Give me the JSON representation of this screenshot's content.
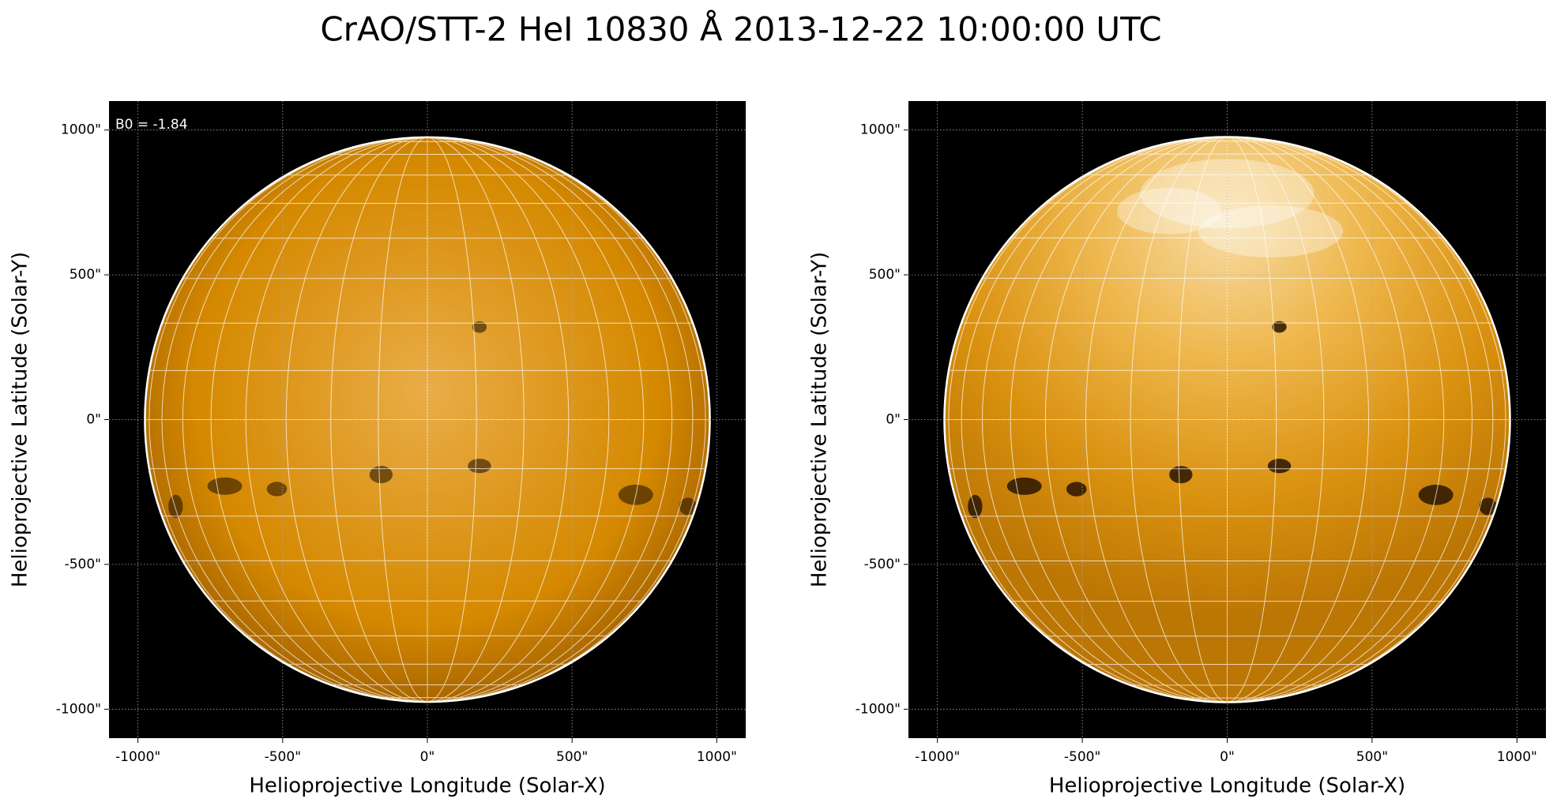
{
  "title": "CrAO/STT-2 HeI 10830 Å 2013-12-22 10:00:00 UTC",
  "chart_data": [
    {
      "type": "image",
      "xlabel": "Helioprojective Longitude (Solar-X)",
      "ylabel": "Helioprojective Latitude (Solar-Y)",
      "xlim": [
        -1100,
        1100
      ],
      "ylim": [
        -1100,
        1100
      ],
      "xticks": [
        {
          "value": -1000,
          "label": "-1000\""
        },
        {
          "value": -500,
          "label": "-500\""
        },
        {
          "value": 0,
          "label": "0\""
        },
        {
          "value": 500,
          "label": "500\""
        },
        {
          "value": 1000,
          "label": "1000\""
        }
      ],
      "yticks": [
        {
          "value": -1000,
          "label": "-1000\""
        },
        {
          "value": -500,
          "label": "-500\""
        },
        {
          "value": 0,
          "label": "0\""
        },
        {
          "value": 500,
          "label": "500\""
        },
        {
          "value": 1000,
          "label": "1000\""
        }
      ],
      "grid": true,
      "annotation": "B0 = -1.84",
      "solar_radius": 976,
      "color": "#d98a00"
    },
    {
      "type": "image",
      "xlabel": "Helioprojective Longitude (Solar-X)",
      "ylabel": "Helioprojective Latitude (Solar-Y)",
      "xlim": [
        -1100,
        1100
      ],
      "ylim": [
        -1100,
        1100
      ],
      "xticks": [
        {
          "value": -1000,
          "label": "-1000\""
        },
        {
          "value": -500,
          "label": "-500\""
        },
        {
          "value": 0,
          "label": "0\""
        },
        {
          "value": 500,
          "label": "500\""
        },
        {
          "value": 1000,
          "label": "1000\""
        }
      ],
      "yticks": [
        {
          "value": -1000,
          "label": "-1000\""
        },
        {
          "value": -500,
          "label": "-500\""
        },
        {
          "value": 0,
          "label": "0\""
        },
        {
          "value": 500,
          "label": "500\""
        },
        {
          "value": 1000,
          "label": "1000\""
        }
      ],
      "grid": true,
      "solar_radius": 976,
      "color": "#e09a10"
    }
  ]
}
